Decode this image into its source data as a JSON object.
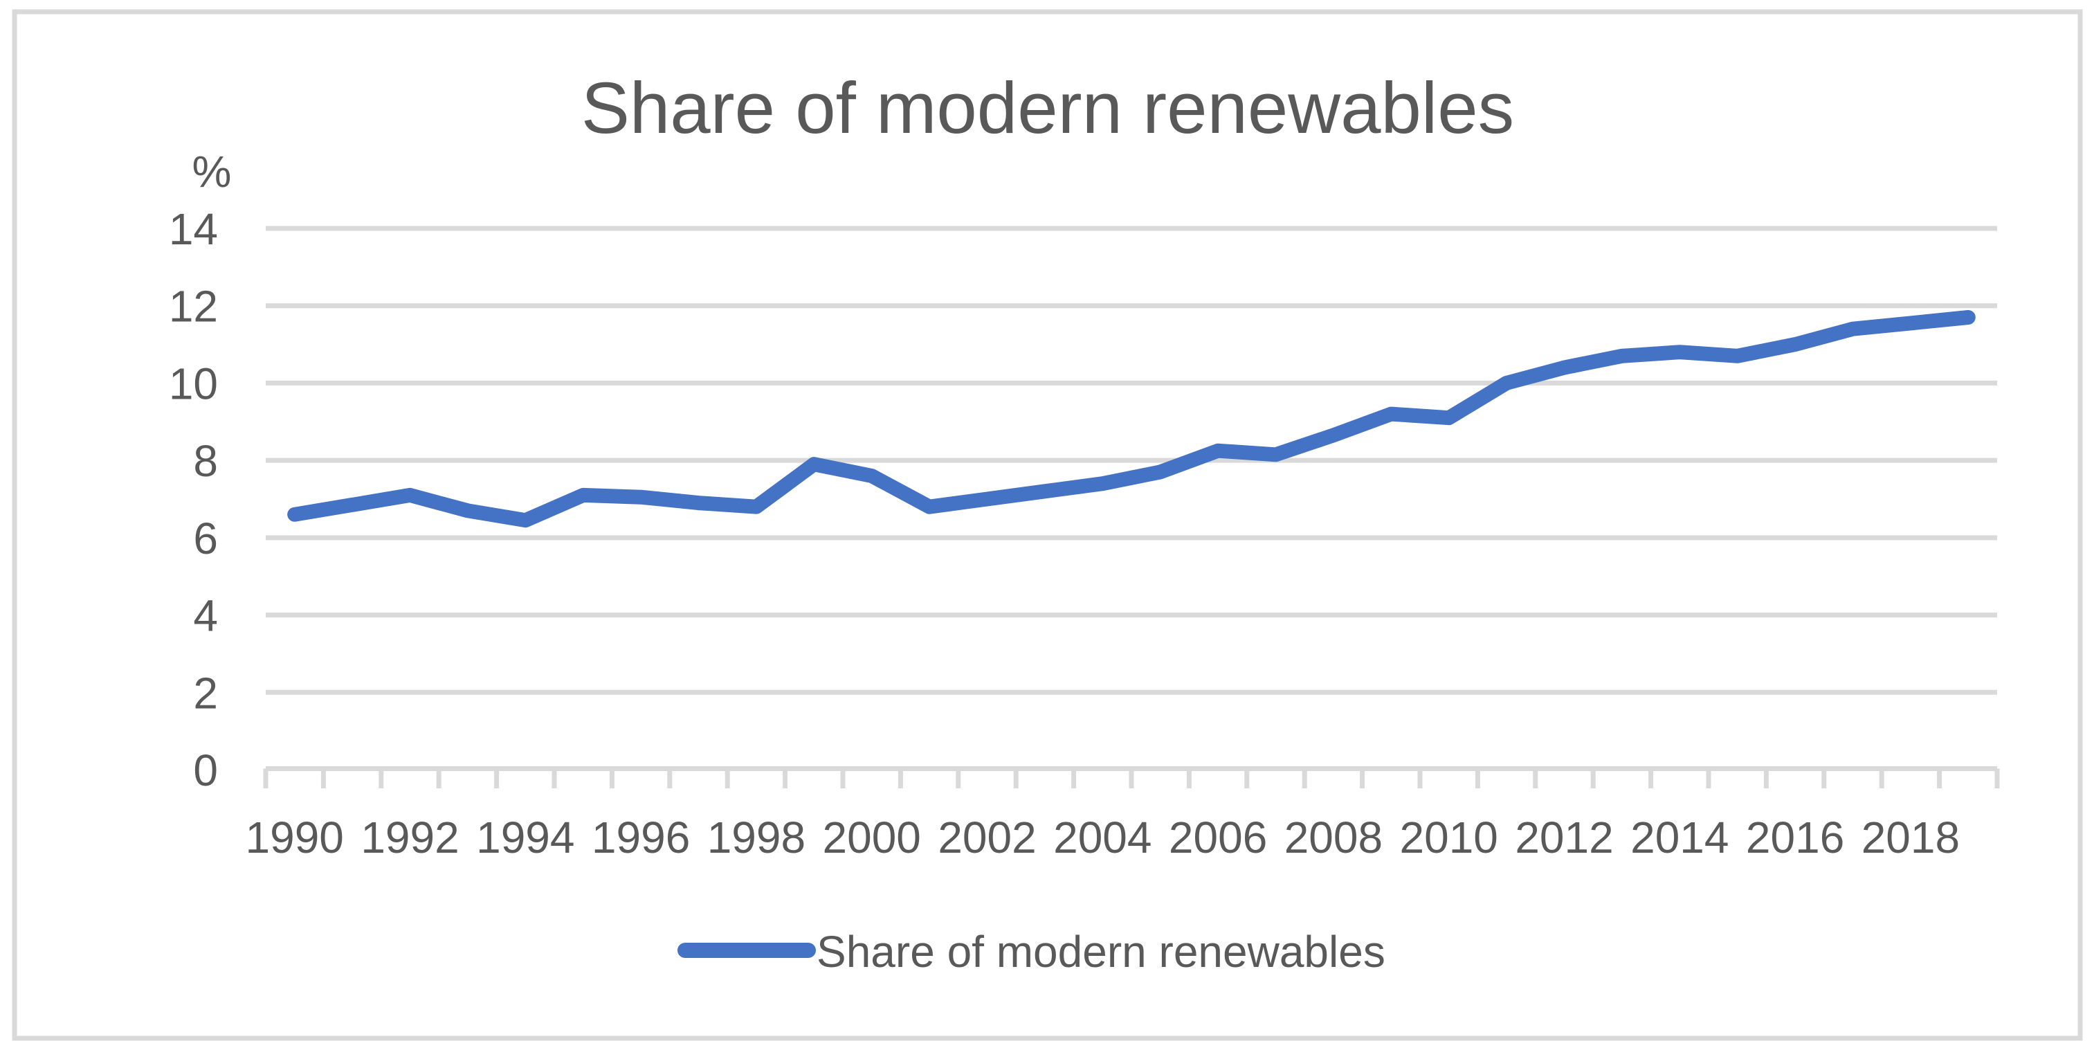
{
  "chart_data": {
    "type": "line",
    "title": "Share of modern renewables",
    "y_unit_label": "%",
    "x": [
      1990,
      1991,
      1992,
      1993,
      1994,
      1995,
      1996,
      1997,
      1998,
      1999,
      2000,
      2001,
      2002,
      2003,
      2004,
      2005,
      2006,
      2007,
      2008,
      2009,
      2010,
      2011,
      2012,
      2013,
      2014,
      2015,
      2016,
      2017,
      2018,
      2019
    ],
    "series": [
      {
        "name": "Share of modern renewables",
        "values": [
          6.6,
          6.85,
          7.1,
          6.7,
          6.45,
          7.1,
          7.05,
          6.9,
          6.8,
          7.9,
          7.6,
          6.8,
          7.0,
          7.2,
          7.4,
          7.7,
          8.25,
          8.15,
          8.65,
          9.2,
          9.1,
          10.0,
          10.4,
          10.7,
          10.8,
          10.7,
          11.0,
          11.4,
          11.55,
          11.7
        ]
      }
    ],
    "x_tick_labels": [
      "1990",
      "1992",
      "1994",
      "1996",
      "1998",
      "2000",
      "2002",
      "2004",
      "2006",
      "2008",
      "2010",
      "2012",
      "2014",
      "2016",
      "2018"
    ],
    "y_tick_labels": [
      "0",
      "2",
      "4",
      "6",
      "8",
      "10",
      "12",
      "14"
    ],
    "y_ticks": [
      0,
      2,
      4,
      6,
      8,
      10,
      12,
      14
    ],
    "ylim": [
      0,
      14
    ],
    "grid": true,
    "legend_position": "bottom",
    "colors": {
      "series": "#4472C4",
      "gridline": "#D9D9D9",
      "axis": "#D9D9D9",
      "text": "#595959",
      "border": "#D9D9D9",
      "background": "#FFFFFF"
    }
  }
}
